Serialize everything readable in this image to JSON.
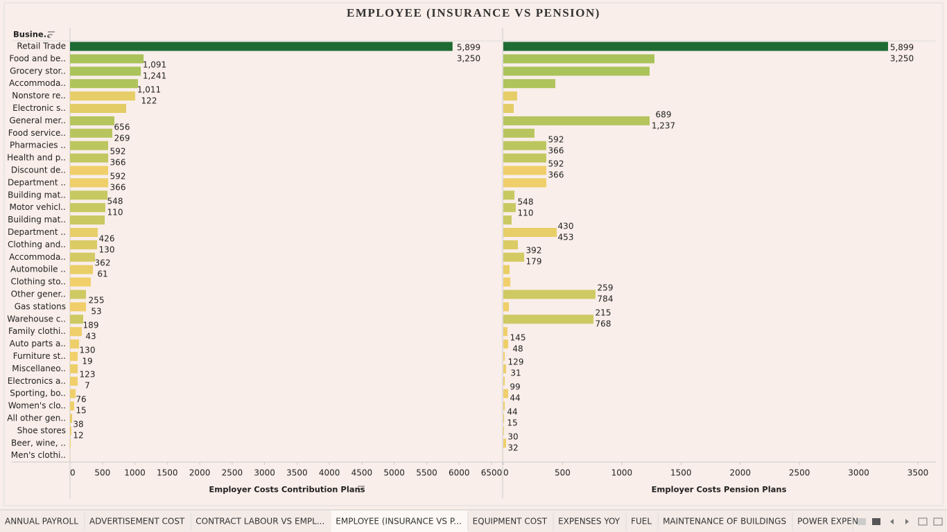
{
  "title": "EMPLOYEE (INSURANCE VS PENSION)",
  "row_header": "Busine..",
  "tabs": [
    "ANNUAL PAYROLL",
    "ADVERTISEMENT COST",
    "CONTRACT LABOUR VS EMPL...",
    "EMPLOYEE (INSURANCE VS P...",
    "EQUIPMENT COST",
    "EXPENSES YOY",
    "FUEL",
    "MAINTENANCE OF BUILDINGS",
    "POWER EXPEN"
  ],
  "active_tab": 3,
  "chart_data": [
    {
      "type": "bar",
      "orientation": "horizontal",
      "x_label": "Employer Costs Contribution Plans",
      "categories": [
        "Retail Trade",
        "Food and be..",
        "Grocery stor..",
        "Accommoda..",
        "Nonstore re..",
        "Electronic s..",
        "General mer..",
        "Food service..",
        "Pharmacies ..",
        "Health and p..",
        "Discount de..",
        "Department ..",
        "Building mat..",
        "Motor vehicl..",
        "Building mat..",
        "Department ..",
        "Clothing and..",
        "Accommoda..",
        "Automobile ..",
        "Clothing sto..",
        "Other gener..",
        "Gas stations",
        "Warehouse c..",
        "Family clothi..",
        "Auto parts a..",
        "Furniture st..",
        "Miscellaneo..",
        "Electronics a..",
        "Sporting, bo..",
        "Women's clo..",
        "All other gen..",
        "Shoe stores",
        "Beer, wine, ..",
        "Men's clothi.."
      ],
      "values": [
        5899,
        1134,
        1091,
        1048,
        1005,
        866,
        684,
        652,
        588,
        588,
        588,
        588,
        578,
        545,
        535,
        428,
        417,
        385,
        353,
        321,
        246,
        246,
        203,
        182,
        139,
        118,
        118,
        118,
        86,
        64,
        32,
        21,
        11,
        2
      ],
      "colors": [
        "#1e6b34",
        "#a9c25a",
        "#aac35a",
        "#b0c45c",
        "#e6cd67",
        "#e3cc66",
        "#b6c45d",
        "#b8c55e",
        "#bcc65f",
        "#c3c760",
        "#f0cf6a",
        "#efcf69",
        "#c6c861",
        "#c8c862",
        "#cac862",
        "#e8ce68",
        "#dacb65",
        "#d4ca64",
        "#e9ce68",
        "#f1d06b",
        "#cfc963",
        "#f0cf6a",
        "#cdc963",
        "#efcf6a",
        "#edcf69",
        "#f1d06b",
        "#eccf69",
        "#f0cf6a",
        "#efcf6a",
        "#efcf6a",
        "#e6cd67",
        "#f0cf6a",
        "#efcf6a",
        "#f0d06b"
      ],
      "xlim": [
        0,
        6500
      ],
      "xticks": [
        0,
        500,
        1000,
        1500,
        2000,
        2500,
        3000,
        3500,
        4000,
        4500,
        5000,
        5500,
        6000,
        6500
      ],
      "annotations": [
        [
          "5,899",
          "3,250"
        ],
        [
          "1,091",
          "1,241"
        ],
        [
          "1,011",
          "122"
        ],
        [
          "656",
          "269"
        ],
        [
          "592",
          "366"
        ],
        [
          "592",
          "366"
        ],
        [
          "548",
          "110"
        ],
        [
          "426",
          "130"
        ],
        [
          "362",
          "61"
        ],
        [
          "255",
          "53"
        ],
        [
          "189",
          "43"
        ],
        [
          "130",
          "19"
        ],
        [
          "123",
          "7"
        ],
        [
          "76",
          "15"
        ],
        [
          "38",
          "12"
        ]
      ]
    },
    {
      "type": "bar",
      "orientation": "horizontal",
      "x_label": "Employer Costs Pension Plans",
      "values": [
        3248,
        1276,
        1235,
        439,
        117,
        88,
        1235,
        263,
        363,
        363,
        363,
        363,
        94,
        105,
        70,
        451,
        123,
        176,
        53,
        59,
        778,
        47,
        761,
        35,
        41,
        12,
        23,
        12,
        41,
        12,
        6,
        6,
        23,
        1
      ],
      "xlim": [
        0,
        3500
      ],
      "xticks": [
        0,
        500,
        1000,
        1500,
        2000,
        2500,
        3000,
        3500
      ],
      "annotations": [
        [
          "5,899",
          "3,250"
        ],
        [
          "689",
          "1,237"
        ],
        [
          "592",
          "366"
        ],
        [
          "592",
          "366"
        ],
        [
          "548",
          "110"
        ],
        [
          "430",
          "453"
        ],
        [
          "392",
          "179"
        ],
        [
          "259",
          "784"
        ],
        [
          "215",
          "768"
        ],
        [
          "145",
          "48"
        ],
        [
          "129",
          "31"
        ],
        [
          "99",
          "44"
        ],
        [
          "44",
          "15"
        ],
        [
          "30",
          "32"
        ]
      ]
    }
  ]
}
